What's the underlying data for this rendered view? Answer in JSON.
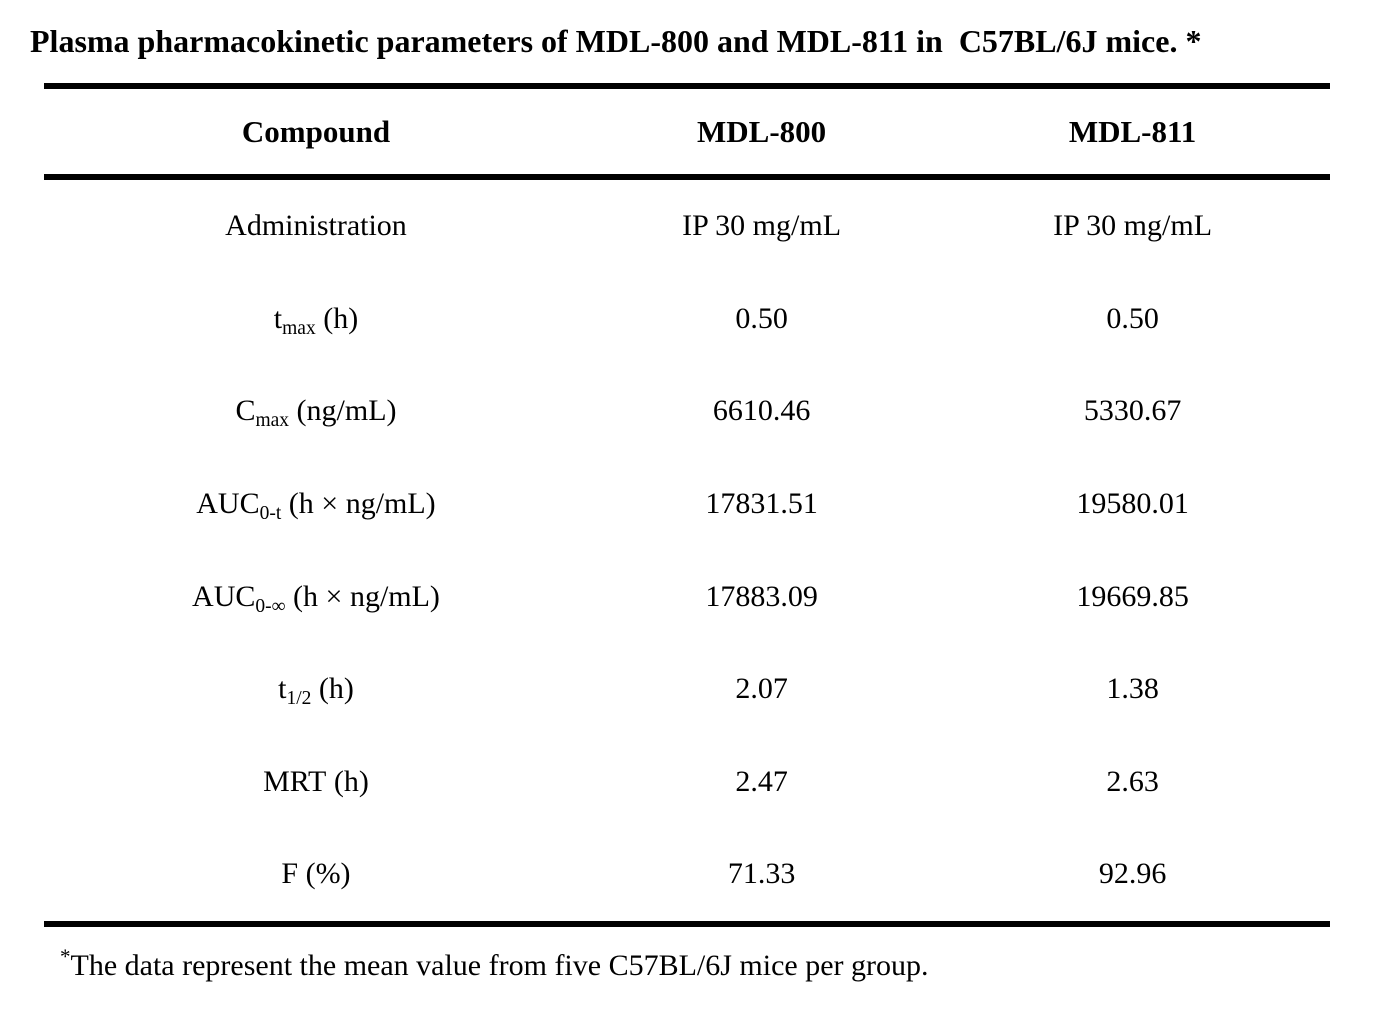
{
  "title": "Plasma pharmacokinetic parameters of MDL-800 and MDL-811 in  C57BL/6J mice. *",
  "colors": {
    "text": "#000000",
    "background": "#ffffff",
    "rule": "#000000"
  },
  "table": {
    "columns": [
      "Compound",
      "MDL-800",
      "MDL-811"
    ],
    "rows": [
      {
        "pre": "Administration",
        "sub": "",
        "post": "",
        "v800": "IP 30 mg/mL",
        "v811": "IP 30 mg/mL"
      },
      {
        "pre": "t",
        "sub": "max",
        "post": " (h)",
        "v800": "0.50",
        "v811": "0.50"
      },
      {
        "pre": "C",
        "sub": "max",
        "post": " (ng/mL)",
        "v800": "6610.46",
        "v811": "5330.67"
      },
      {
        "pre": "AUC",
        "sub": "0-t",
        "post": " (h × ng/mL)",
        "v800": "17831.51",
        "v811": "19580.01"
      },
      {
        "pre": "AUC",
        "sub": "0-∞",
        "post": " (h × ng/mL)",
        "v800": "17883.09",
        "v811": "19669.85"
      },
      {
        "pre": "t",
        "sub": "1/2",
        "post": " (h)",
        "v800": "2.07",
        "v811": "1.38"
      },
      {
        "pre": "MRT",
        "sub": "",
        "post": " (h)",
        "v800": "2.47",
        "v811": "2.63"
      },
      {
        "pre": "F",
        "sub": "",
        "post": " (%)",
        "v800": "71.33",
        "v811": "92.96"
      }
    ]
  },
  "footnote": {
    "marker": "*",
    "text": "The data represent the mean value from five C57BL/6J mice per group."
  }
}
